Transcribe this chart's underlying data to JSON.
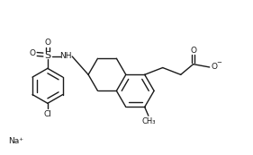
{
  "bg_color": "#ffffff",
  "line_color": "#1a1a1a",
  "line_width": 1.0,
  "font_size": 6.5,
  "figsize": [
    2.81,
    1.73
  ],
  "dpi": 100,
  "xlim": [
    0,
    10
  ],
  "ylim": [
    0,
    6.17
  ]
}
